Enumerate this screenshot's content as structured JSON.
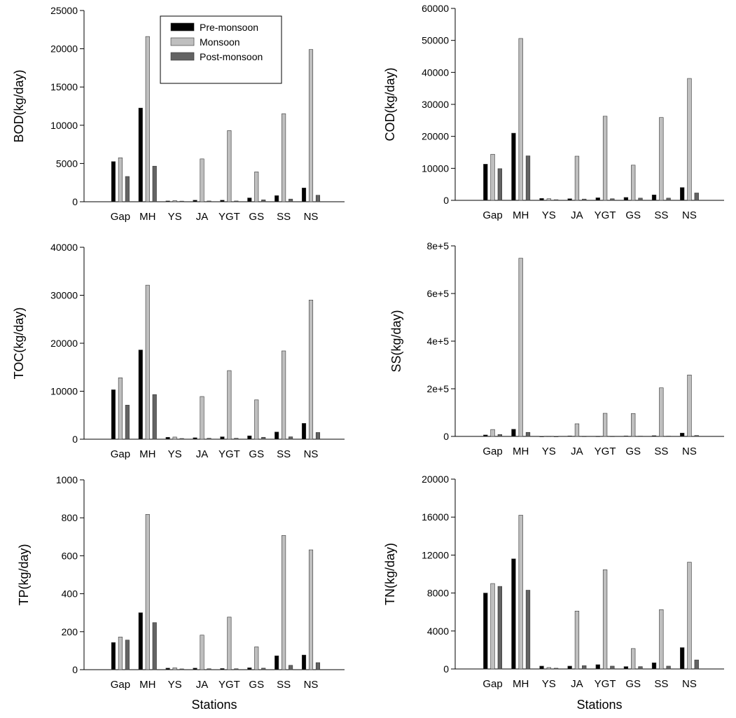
{
  "colors": {
    "pre": "#000000",
    "monsoon": "#bfbfbf",
    "post": "#636363",
    "axis": "#000000",
    "bar_edge": "#333333"
  },
  "legend": {
    "placement": "top-inside-first-panel",
    "entries": [
      "Pre-monsoon",
      "Monsoon",
      "Post-monsoon"
    ]
  },
  "xlabel": "Stations",
  "chart_data": [
    {
      "type": "bar",
      "ylabel": "BOD(kg/day)",
      "categories": [
        "Gap",
        "MH",
        "YS",
        "JA",
        "YGT",
        "GS",
        "SS",
        "NS"
      ],
      "ylim": [
        0,
        25000
      ],
      "yticks": [
        0,
        5000,
        10000,
        15000,
        20000,
        25000
      ],
      "ytick_labels": [
        "0",
        "5000",
        "10000",
        "15000",
        "20000",
        "25000"
      ],
      "series": [
        {
          "name": "Pre-monsoon",
          "values": [
            5250,
            12250,
            100,
            200,
            200,
            500,
            800,
            1800
          ]
        },
        {
          "name": "Monsoon",
          "values": [
            5750,
            21600,
            150,
            5600,
            9300,
            3900,
            11500,
            19900
          ]
        },
        {
          "name": "Post-monsoon",
          "values": [
            3300,
            4650,
            80,
            100,
            100,
            250,
            350,
            850
          ]
        }
      ]
    },
    {
      "type": "bar",
      "ylabel": "COD(kg/day)",
      "categories": [
        "Gap",
        "MH",
        "YS",
        "JA",
        "YGT",
        "GS",
        "SS",
        "NS"
      ],
      "ylim": [
        0,
        60000
      ],
      "yticks": [
        0,
        10000,
        20000,
        30000,
        40000,
        50000,
        60000
      ],
      "ytick_labels": [
        "0",
        "10000",
        "20000",
        "30000",
        "40000",
        "50000",
        "60000"
      ],
      "series": [
        {
          "name": "Pre-monsoon",
          "values": [
            11300,
            21000,
            600,
            500,
            800,
            900,
            1700,
            4000
          ]
        },
        {
          "name": "Monsoon",
          "values": [
            14400,
            50600,
            500,
            13800,
            26300,
            11000,
            25900,
            38100
          ]
        },
        {
          "name": "Post-monsoon",
          "values": [
            9900,
            13900,
            200,
            400,
            500,
            700,
            700,
            2300
          ]
        }
      ]
    },
    {
      "type": "bar",
      "ylabel": "TOC(kg/day)",
      "categories": [
        "Gap",
        "MH",
        "YS",
        "JA",
        "YGT",
        "GS",
        "SS",
        "NS"
      ],
      "ylim": [
        0,
        40000
      ],
      "yticks": [
        0,
        10000,
        20000,
        30000,
        40000
      ],
      "ytick_labels": [
        "0",
        "10000",
        "20000",
        "30000",
        "40000"
      ],
      "series": [
        {
          "name": "Pre-monsoon",
          "values": [
            10300,
            18600,
            400,
            300,
            500,
            700,
            1500,
            3300
          ]
        },
        {
          "name": "Monsoon",
          "values": [
            12800,
            32100,
            450,
            8900,
            14300,
            8200,
            18400,
            29000
          ]
        },
        {
          "name": "Post-monsoon",
          "values": [
            7100,
            9300,
            150,
            200,
            200,
            400,
            500,
            1400
          ]
        }
      ]
    },
    {
      "type": "bar",
      "ylabel": "SS(kg/day)",
      "categories": [
        "Gap",
        "MH",
        "YS",
        "JA",
        "YGT",
        "GS",
        "SS",
        "NS"
      ],
      "ylim": [
        0,
        800000
      ],
      "yticks": [
        0,
        200000,
        400000,
        600000,
        800000
      ],
      "ytick_labels": [
        "0",
        "2e+5",
        "4e+5",
        "6e+5",
        "8e+5"
      ],
      "series": [
        {
          "name": "Pre-monsoon",
          "values": [
            6000,
            30000,
            500,
            2000,
            1000,
            2000,
            3000,
            14000
          ]
        },
        {
          "name": "Monsoon",
          "values": [
            29000,
            748000,
            1000,
            53000,
            97000,
            96000,
            204000,
            258000
          ]
        },
        {
          "name": "Post-monsoon",
          "values": [
            8000,
            17000,
            300,
            1000,
            1000,
            1500,
            1500,
            4000
          ]
        }
      ]
    },
    {
      "type": "bar",
      "ylabel": "TP(kg/day)",
      "categories": [
        "Gap",
        "MH",
        "YS",
        "JA",
        "YGT",
        "GS",
        "SS",
        "NS"
      ],
      "ylim": [
        0,
        1000
      ],
      "yticks": [
        0,
        200,
        400,
        600,
        800,
        1000
      ],
      "ytick_labels": [
        "0",
        "200",
        "400",
        "600",
        "800",
        "1000"
      ],
      "series": [
        {
          "name": "Pre-monsoon",
          "values": [
            143,
            300,
            8,
            8,
            6,
            10,
            73,
            77
          ]
        },
        {
          "name": "Monsoon",
          "values": [
            172,
            818,
            10,
            182,
            277,
            120,
            707,
            631
          ]
        },
        {
          "name": "Post-monsoon",
          "values": [
            156,
            248,
            4,
            5,
            5,
            8,
            23,
            37
          ]
        }
      ]
    },
    {
      "type": "bar",
      "ylabel": "TN(kg/day)",
      "categories": [
        "Gap",
        "MH",
        "YS",
        "JA",
        "YGT",
        "GS",
        "SS",
        "NS"
      ],
      "ylim": [
        0,
        20000
      ],
      "yticks": [
        0,
        4000,
        8000,
        12000,
        16000,
        20000
      ],
      "ytick_labels": [
        "0",
        "4000",
        "8000",
        "12000",
        "16000",
        "20000"
      ],
      "series": [
        {
          "name": "Pre-monsoon",
          "values": [
            8000,
            11600,
            300,
            300,
            450,
            250,
            650,
            2250
          ]
        },
        {
          "name": "Monsoon",
          "values": [
            9000,
            16200,
            150,
            6100,
            10450,
            2150,
            6250,
            11250
          ]
        },
        {
          "name": "Post-monsoon",
          "values": [
            8700,
            8300,
            80,
            350,
            300,
            250,
            300,
            950
          ]
        }
      ]
    }
  ]
}
